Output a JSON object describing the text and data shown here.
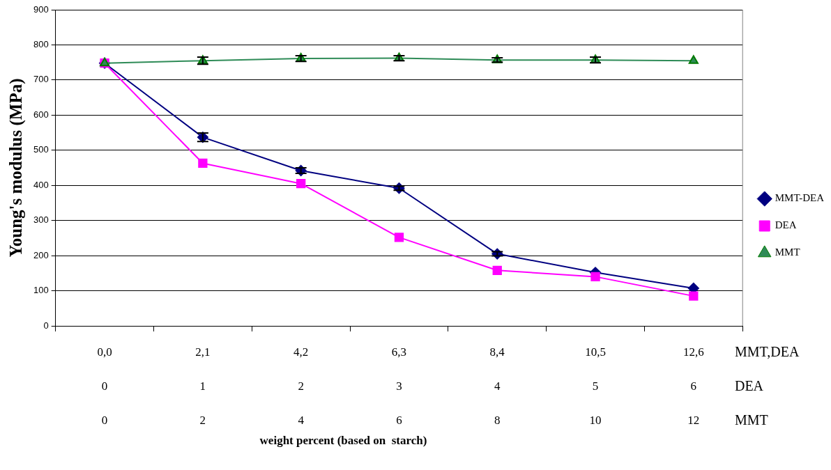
{
  "chart_data": {
    "type": "line",
    "ylabel": "Young's modulus (MPa)",
    "categories": [
      "0,0\n0\n0",
      "2,1\n1\n2",
      "4,2\n2\n4",
      "6,3\n3\n6",
      "8,4\n4\n8",
      "10,5\n5\n10",
      "12,6\n6\n12"
    ],
    "annotations": [
      "MMT,DEA",
      "DEA",
      "MMT",
      "weight percent (based on  starch)"
    ],
    "ylim": [
      0,
      900
    ],
    "yticks": [
      0,
      100,
      200,
      300,
      400,
      500,
      600,
      700,
      800,
      900
    ],
    "grid": "y",
    "legend": "right",
    "line_style": "solid",
    "series": [
      {
        "name": "MMT-DEA",
        "color": "#000080",
        "marker": "diamond",
        "values": [
          748,
          537,
          442,
          392,
          205,
          152,
          107
        ],
        "errors": [
          null,
          12,
          8,
          6,
          6,
          null,
          null
        ]
      },
      {
        "name": "DEA",
        "color": "#ff00ff",
        "marker": "square",
        "values": [
          748,
          463,
          405,
          252,
          158,
          140,
          85
        ]
      },
      {
        "name": "MMT",
        "color": "#2e8b57",
        "marker": "triangle",
        "values": [
          748,
          755,
          761,
          762,
          757,
          757,
          755
        ],
        "errors": [
          null,
          10,
          8,
          7,
          6,
          8,
          null
        ]
      }
    ]
  }
}
